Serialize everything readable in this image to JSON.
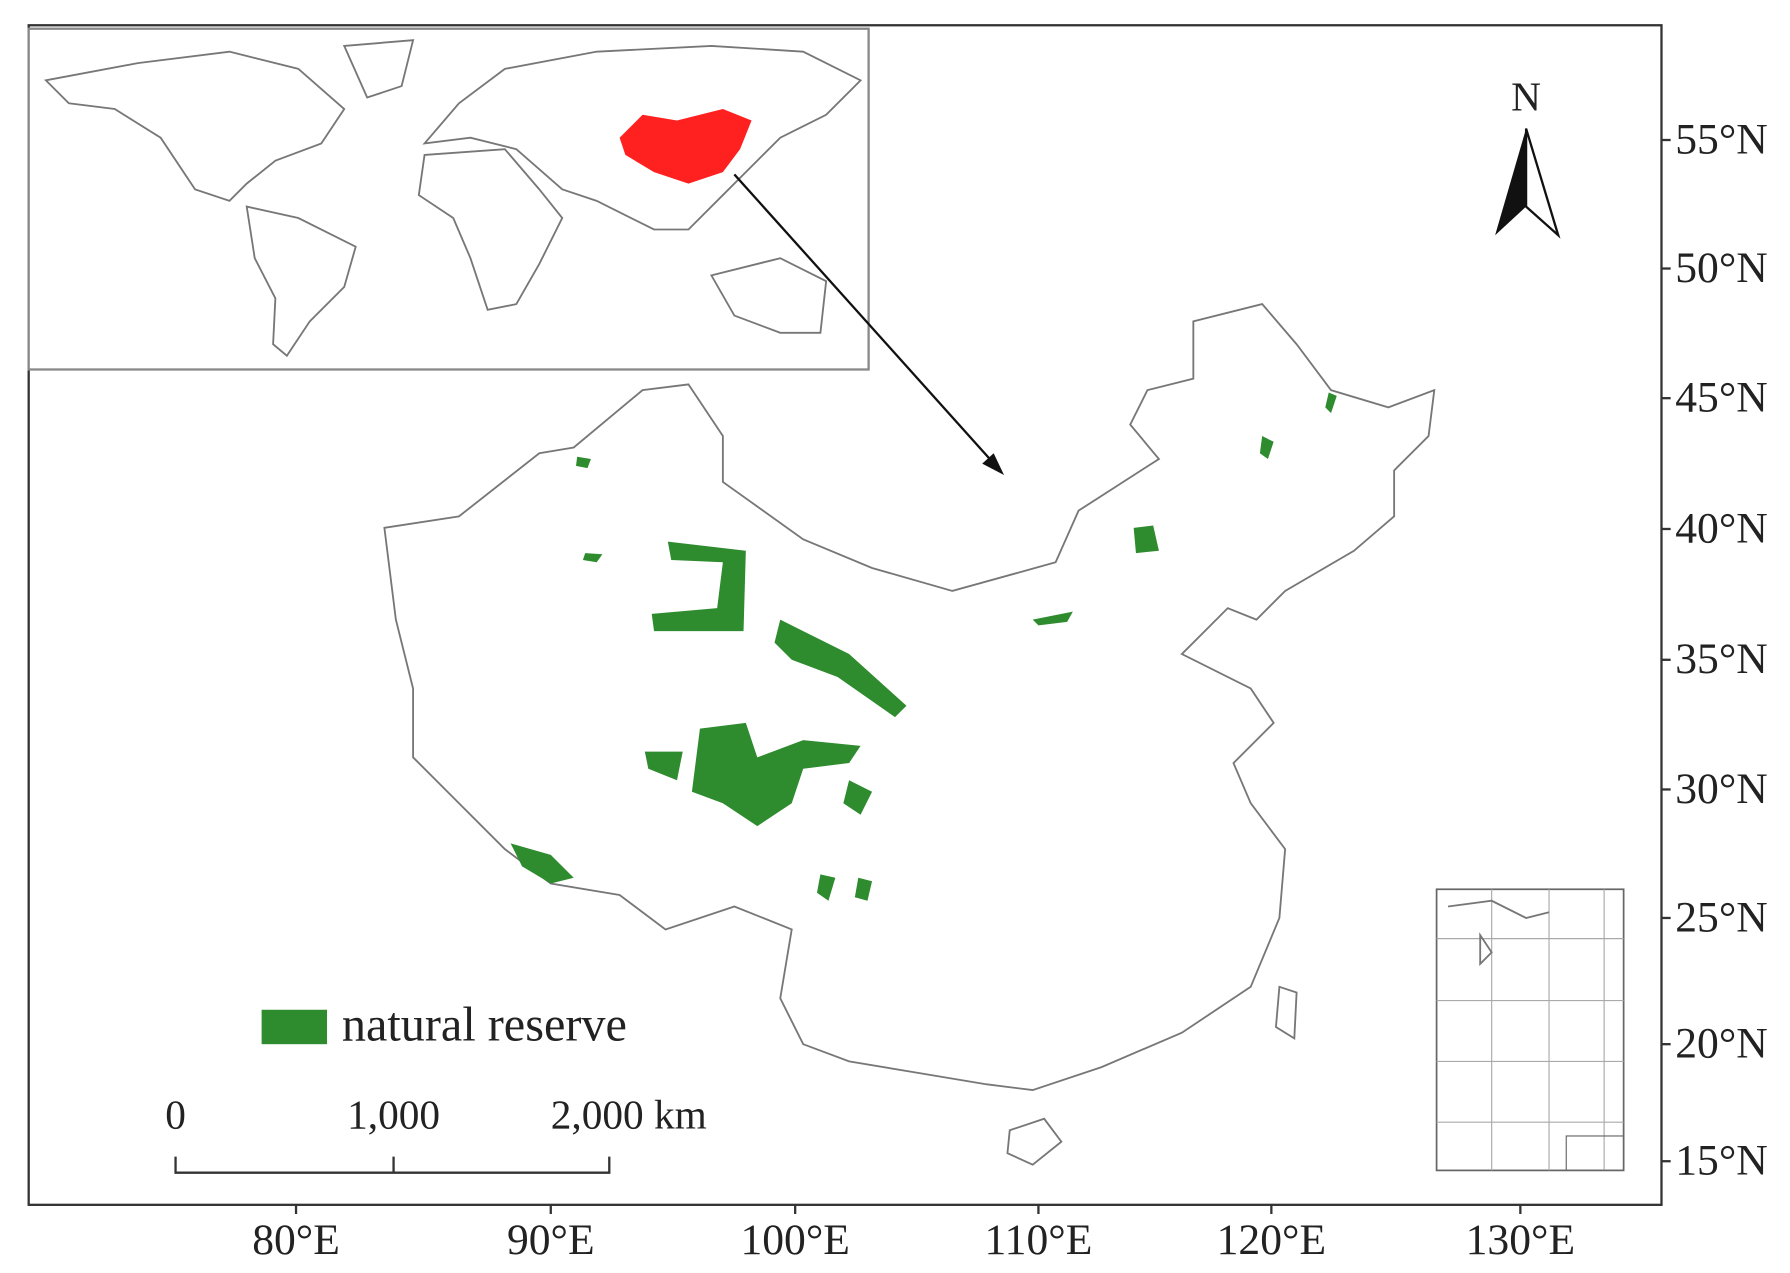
{
  "north_arrow": "N",
  "legend": {
    "label": "natural reserve"
  },
  "scale_bar": {
    "labels": [
      "0",
      "1,000",
      "2,000 km"
    ]
  },
  "longitude_labels": [
    "80°E",
    "90°E",
    "100°E",
    "110°E",
    "120°E",
    "130°E"
  ],
  "latitude_labels": [
    "55°N",
    "50°N",
    "45°N",
    "40°N",
    "35°N",
    "30°N",
    "25°N",
    "20°N",
    "15°N"
  ]
}
